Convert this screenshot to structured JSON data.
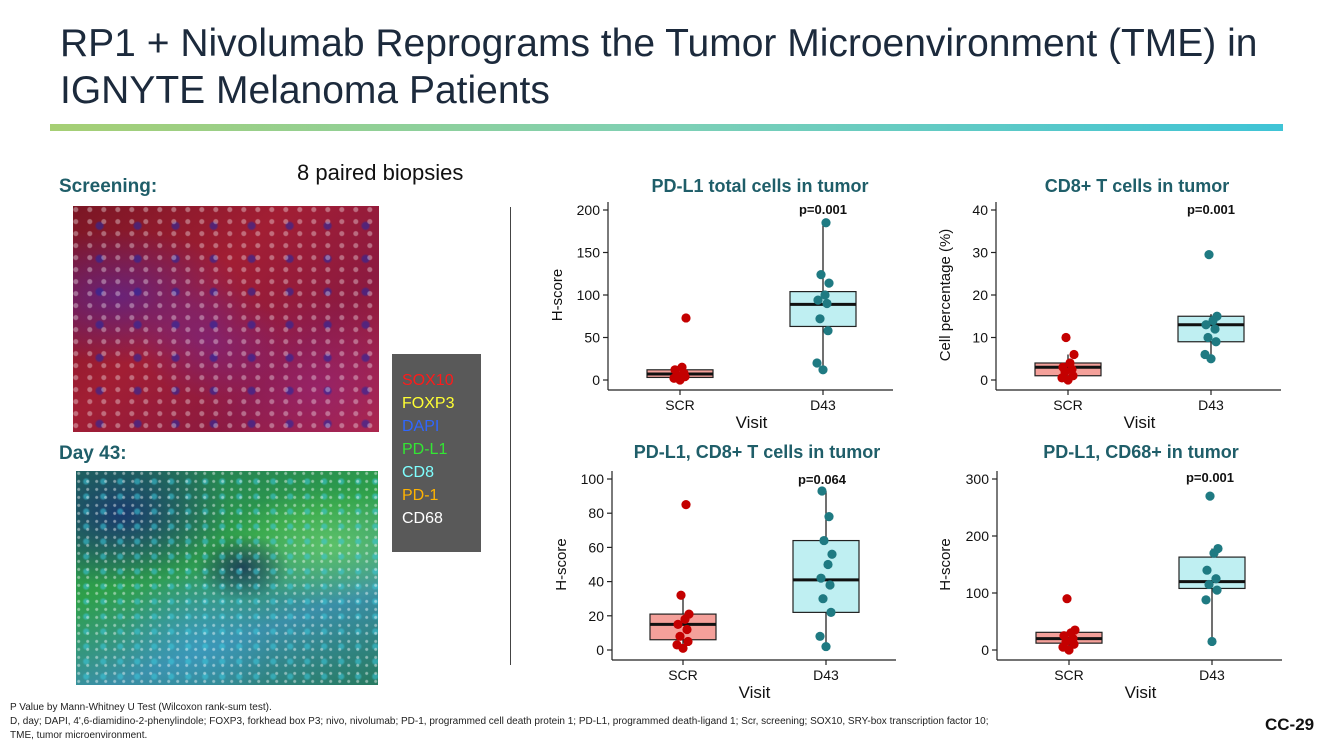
{
  "slide": {
    "title": "RP1 + Nivolumab Reprograms the Tumor Microenvironment (TME) in IGNYTE Melanoma Patients",
    "paired_label": "8 paired biopsies",
    "screening_label": "Screening:",
    "day43_label": "Day 43:",
    "page_number": "CC-29",
    "footnotes": [
      "P Value by Mann-Whitney U Test (Wilcoxon rank-sum test).",
      "D, day; DAPI, 4',6-diamidino-2-phenylindole; FOXP3, forkhead box P3; nivo, nivolumab; PD-1, programmed cell death protein 1; PD-L1, programmed death-ligand 1; Scr, screening; SOX10, SRY-box transcription factor 10;",
      "TME, tumor microenvironment."
    ]
  },
  "stain_legend": [
    {
      "label": "SOX10",
      "color": "#ff1a1a"
    },
    {
      "label": "FOXP3",
      "color": "#ffff33"
    },
    {
      "label": "DAPI",
      "color": "#2f66ff"
    },
    {
      "label": "PD-L1",
      "color": "#33e633"
    },
    {
      "label": "CD8",
      "color": "#7fffff"
    },
    {
      "label": "PD-1",
      "color": "#ffb300"
    },
    {
      "label": "CD68",
      "color": "#ffffff"
    }
  ],
  "colors": {
    "scr_fill": "#f4a09a",
    "scr_point": "#c40000",
    "d43_fill": "#bfeff2",
    "d43_point": "#1f7a82",
    "title_color": "#1f5e69"
  },
  "chart_data": [
    {
      "type": "box",
      "title": "PD-L1 total cells in tumor",
      "ylabel": "H-score",
      "xlabel": "Visit",
      "pvalue": "p=0.001",
      "ylim": [
        0,
        200
      ],
      "yticks": [
        0,
        50,
        100,
        150,
        200
      ],
      "categories": [
        "SCR",
        "D43"
      ],
      "boxes": [
        {
          "q1": 3,
          "median": 7,
          "q3": 12,
          "low": 0,
          "high": 15
        },
        {
          "q1": 63,
          "median": 89,
          "q3": 104,
          "low": 12,
          "high": 185
        }
      ],
      "points": [
        [
          0,
          2,
          4,
          6,
          8,
          12,
          15,
          73
        ],
        [
          12,
          20,
          58,
          72,
          90,
          94,
          100,
          114,
          124,
          185
        ]
      ]
    },
    {
      "type": "box",
      "title": "CD8+ T cells in tumor",
      "ylabel": "Cell percentage (%)",
      "xlabel": "Visit",
      "pvalue": "p=0.001",
      "ylim": [
        0,
        40
      ],
      "yticks": [
        0,
        10,
        20,
        30,
        40
      ],
      "categories": [
        "SCR",
        "D43"
      ],
      "boxes": [
        {
          "q1": 1,
          "median": 3,
          "q3": 4,
          "low": 0,
          "high": 6
        },
        {
          "q1": 9,
          "median": 13,
          "q3": 15,
          "low": 5,
          "high": 15.5
        }
      ],
      "points": [
        [
          0,
          0.5,
          1,
          2,
          2.5,
          3,
          4,
          6,
          10
        ],
        [
          5,
          6,
          9,
          10,
          12,
          13,
          14,
          15,
          29.5
        ]
      ]
    },
    {
      "type": "box",
      "title": "PD-L1, CD8+ T cells in tumor",
      "ylabel": "H-score",
      "xlabel": "Visit",
      "pvalue": "p=0.064",
      "ylim": [
        0,
        100
      ],
      "yticks": [
        0,
        20,
        40,
        60,
        80,
        100
      ],
      "categories": [
        "SCR",
        "D43"
      ],
      "boxes": [
        {
          "q1": 6,
          "median": 15,
          "q3": 21,
          "low": 1,
          "high": 32
        },
        {
          "q1": 22,
          "median": 41,
          "q3": 64,
          "low": 2,
          "high": 93
        }
      ],
      "points": [
        [
          1,
          3,
          5,
          8,
          12,
          15,
          18,
          21,
          32,
          85
        ],
        [
          2,
          8,
          22,
          30,
          38,
          42,
          50,
          56,
          64,
          78,
          93
        ]
      ]
    },
    {
      "type": "box",
      "title": "PD-L1, CD68+ in tumor",
      "ylabel": "H-score",
      "xlabel": "Visit",
      "pvalue": "p=0.001",
      "ylim": [
        0,
        300
      ],
      "yticks": [
        0,
        100,
        200,
        300
      ],
      "categories": [
        "SCR",
        "D43"
      ],
      "boxes": [
        {
          "q1": 12,
          "median": 20,
          "q3": 31,
          "low": 0,
          "high": 36
        },
        {
          "q1": 108,
          "median": 120,
          "q3": 163,
          "low": 15,
          "high": 178
        }
      ],
      "points": [
        [
          0,
          5,
          10,
          15,
          20,
          25,
          30,
          35,
          90
        ],
        [
          15,
          88,
          105,
          115,
          125,
          140,
          170,
          178,
          270
        ]
      ]
    }
  ]
}
